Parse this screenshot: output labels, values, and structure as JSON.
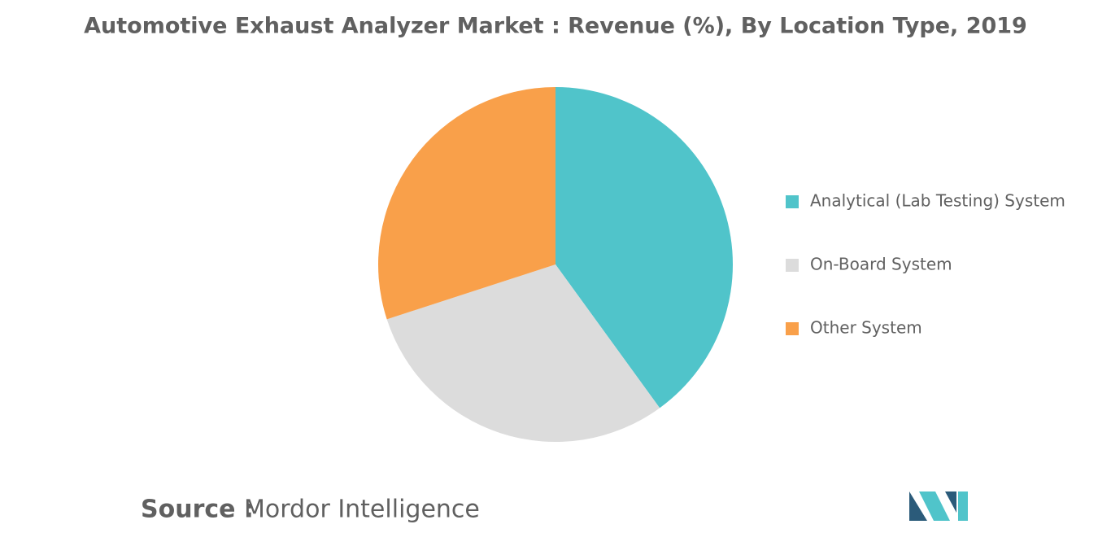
{
  "chart_data": {
    "type": "pie",
    "title": "Automotive Exhaust Analyzer Market : Revenue (%), By Location Type, 2019",
    "categories": [
      "Analytical (Lab Testing) System",
      "On-Board System",
      "Other System"
    ],
    "values": [
      40,
      30,
      30
    ],
    "colors": [
      "#50c4ca",
      "#dcdcdc",
      "#f9a04a"
    ],
    "legend": "right"
  },
  "footer": {
    "source_label": "Source :",
    "source": "Mordor Intelligence"
  }
}
